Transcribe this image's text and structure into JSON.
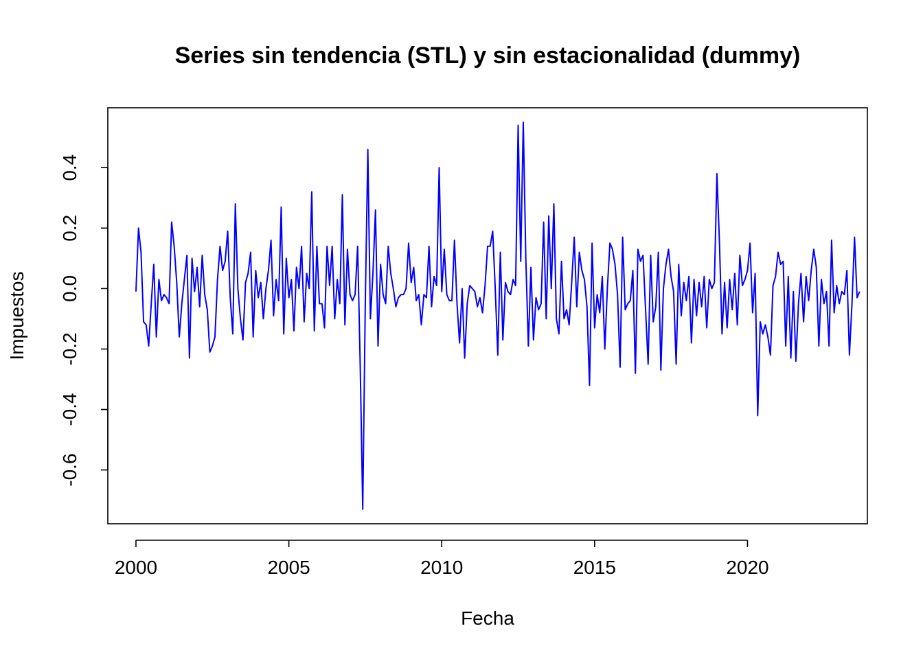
{
  "chart_data": {
    "type": "line",
    "title": "Series sin tendencia (STL) y sin estacionalidad (dummy)",
    "xlabel": "Fecha",
    "ylabel": "Impuestos",
    "xlim": [
      1999.08,
      2023.92
    ],
    "ylim": [
      -0.778,
      0.598
    ],
    "x_ticks": [
      2000,
      2005,
      2010,
      2015,
      2020
    ],
    "x_tick_labels": [
      "2000",
      "2005",
      "2010",
      "2015",
      "2020"
    ],
    "y_ticks": [
      -0.6,
      -0.4,
      -0.2,
      0.0,
      0.2,
      0.4
    ],
    "y_tick_labels": [
      "-0.6",
      "-0.4",
      "-0.2",
      "0.0",
      "0.2",
      "0.4"
    ],
    "grid": false,
    "box": true,
    "x_start": 2000.0,
    "x_frequency": 12,
    "series": [
      {
        "color": "#0000FF",
        "values": [
          -0.01,
          0.2,
          0.12,
          -0.11,
          -0.12,
          -0.19,
          -0.05,
          0.08,
          -0.16,
          0.03,
          -0.04,
          -0.02,
          -0.03,
          -0.05,
          0.22,
          0.14,
          0.02,
          -0.16,
          -0.05,
          0.03,
          0.11,
          -0.23,
          0.1,
          -0.01,
          0.07,
          -0.06,
          0.11,
          -0.02,
          -0.07,
          -0.21,
          -0.19,
          -0.16,
          0.03,
          0.14,
          0.06,
          0.09,
          0.19,
          -0.03,
          -0.15,
          0.28,
          0.0,
          -0.1,
          -0.17,
          0.02,
          0.05,
          0.12,
          -0.16,
          0.06,
          -0.03,
          0.02,
          -0.1,
          0.0,
          0.06,
          0.16,
          -0.09,
          0.03,
          -0.04,
          0.27,
          -0.15,
          0.1,
          -0.03,
          0.03,
          -0.14,
          0.07,
          0.0,
          0.14,
          -0.11,
          0.05,
          0.0,
          0.32,
          -0.14,
          0.14,
          -0.05,
          -0.05,
          -0.13,
          0.14,
          0.01,
          0.14,
          -0.1,
          0.03,
          -0.05,
          0.31,
          -0.12,
          0.13,
          -0.02,
          -0.04,
          -0.02,
          0.14,
          -0.25,
          -0.73,
          -0.05,
          0.46,
          -0.1,
          0.05,
          0.26,
          -0.19,
          0.08,
          -0.02,
          -0.05,
          0.14,
          0.05,
          0.0,
          -0.06,
          -0.03,
          -0.02,
          -0.02,
          0.0,
          0.15,
          0.02,
          0.07,
          -0.04,
          -0.02,
          -0.12,
          -0.02,
          -0.03,
          0.14,
          -0.06,
          0.04,
          0.01,
          0.4,
          -0.01,
          0.13,
          -0.02,
          -0.04,
          -0.04,
          0.16,
          -0.05,
          -0.18,
          0.0,
          -0.23,
          -0.05,
          0.01,
          0.0,
          -0.01,
          -0.06,
          -0.03,
          -0.08,
          0.01,
          0.14,
          0.14,
          0.19,
          0.0,
          -0.22,
          0.12,
          -0.17,
          0.02,
          -0.01,
          -0.02,
          0.03,
          0.01,
          0.54,
          0.09,
          0.55,
          0.1,
          -0.19,
          0.07,
          -0.17,
          -0.03,
          -0.07,
          -0.05,
          0.22,
          -0.1,
          0.24,
          0.0,
          0.28,
          -0.1,
          -0.15,
          0.09,
          -0.1,
          -0.07,
          -0.12,
          0.02,
          0.17,
          -0.06,
          0.12,
          0.06,
          0.03,
          -0.06,
          -0.32,
          0.15,
          -0.13,
          -0.02,
          -0.08,
          0.04,
          -0.2,
          0.0,
          0.15,
          0.13,
          0.08,
          -0.02,
          -0.26,
          0.17,
          -0.07,
          -0.05,
          -0.04,
          0.06,
          -0.28,
          0.13,
          0.09,
          0.11,
          -0.07,
          -0.25,
          0.11,
          -0.11,
          -0.06,
          0.12,
          -0.27,
          0.0,
          0.08,
          0.13,
          0.04,
          -0.01,
          -0.25,
          0.08,
          -0.09,
          0.02,
          -0.04,
          0.04,
          -0.18,
          0.03,
          -0.09,
          0.02,
          -0.06,
          0.04,
          -0.13,
          0.03,
          0.0,
          0.02,
          0.38,
          0.15,
          -0.15,
          0.02,
          -0.13,
          0.03,
          -0.07,
          0.05,
          -0.12,
          0.11,
          0.01,
          0.03,
          0.06,
          0.15,
          -0.08,
          0.05,
          -0.42,
          -0.11,
          -0.15,
          -0.12,
          -0.16,
          -0.22,
          0.01,
          0.04,
          0.12,
          0.08,
          0.09,
          -0.19,
          0.04,
          -0.23,
          -0.01,
          -0.24,
          -0.05,
          0.05,
          -0.11,
          0.04,
          -0.04,
          0.06,
          0.13,
          0.07,
          -0.19,
          0.03,
          -0.05,
          -0.01,
          -0.19,
          0.16,
          -0.08,
          0.01,
          -0.05,
          -0.01,
          -0.02,
          0.06,
          -0.22,
          -0.05,
          0.17,
          -0.03,
          -0.01
        ]
      }
    ]
  }
}
